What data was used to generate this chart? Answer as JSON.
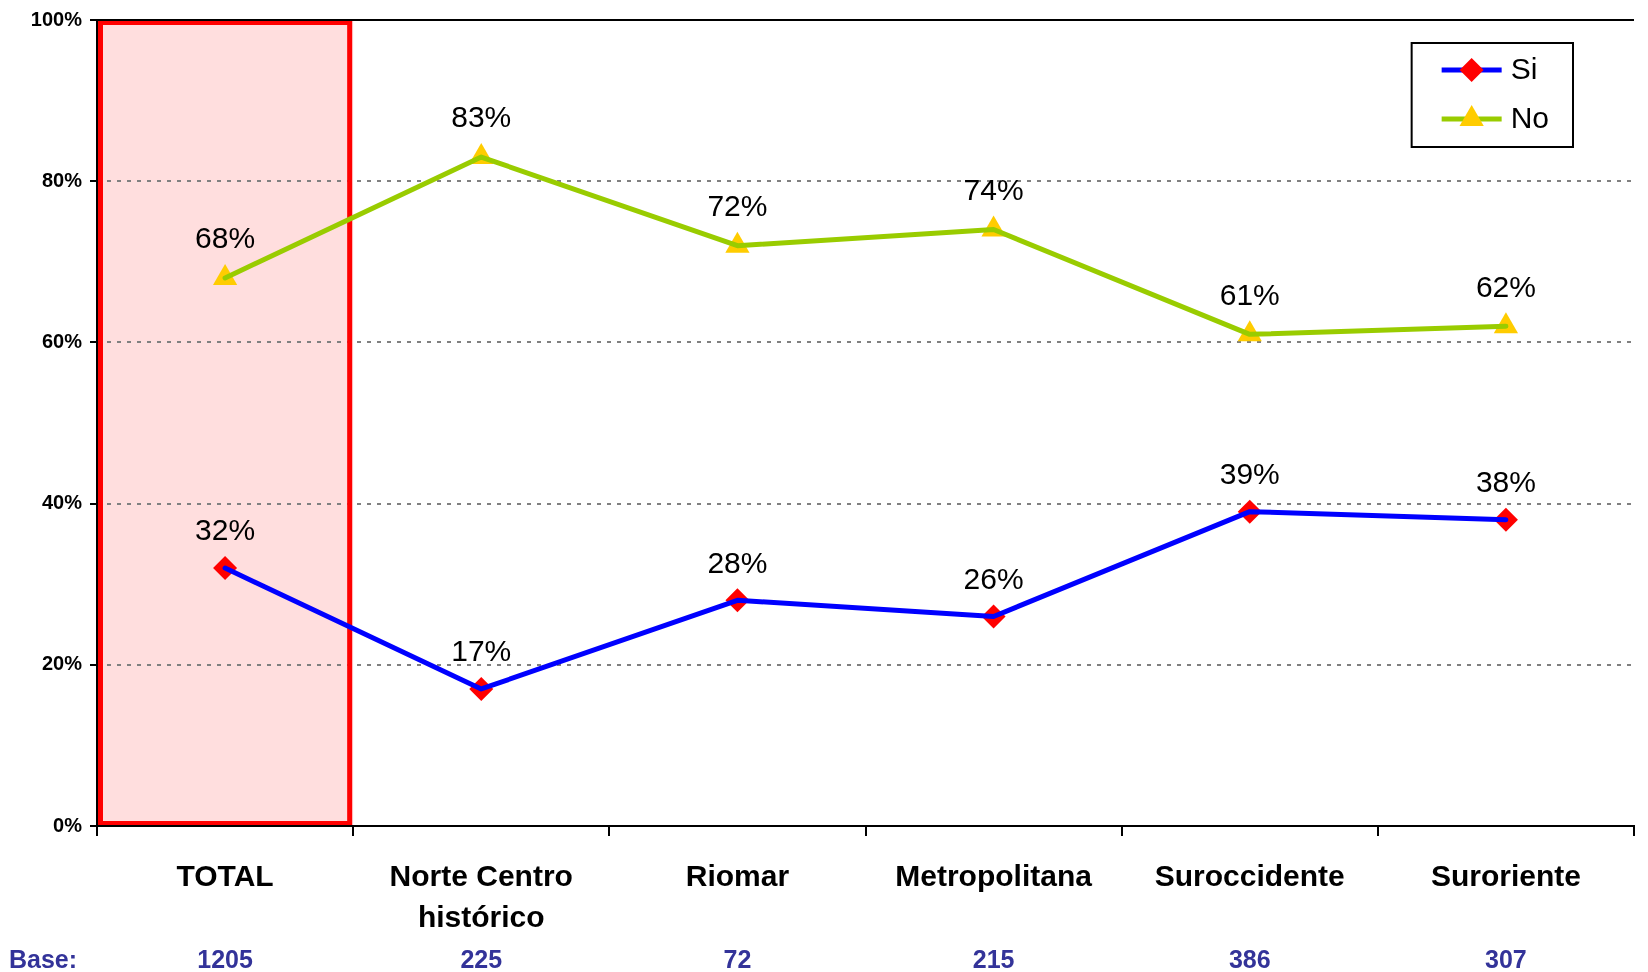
{
  "chart_data": {
    "type": "line",
    "categories": [
      "TOTAL",
      "Norte Centro histórico",
      "Riomar",
      "Metropolitana",
      "Suroccidente",
      "Suroriente"
    ],
    "series": [
      {
        "name": "Si",
        "color": "#0000ff",
        "colors": [
          "#ff0000",
          "#ff0000",
          "#ff0000",
          "#ff0000",
          "#ff0000",
          "#ff0000"
        ],
        "marker": "diamond",
        "values": [
          32,
          17,
          28,
          26,
          39,
          38
        ],
        "value_labels": [
          "32%",
          "17%",
          "28%",
          "26%",
          "39%",
          "38%"
        ]
      },
      {
        "name": "No",
        "color": "#99cc00",
        "colors": [
          "#ffcc00",
          "#ffcc00",
          "#ffcc00",
          "#ffcc00",
          "#ffcc00",
          "#ffcc00"
        ],
        "marker": "triangle",
        "values": [
          68,
          83,
          72,
          74,
          61,
          62
        ],
        "value_labels": [
          "68%",
          "83%",
          "72%",
          "74%",
          "61%",
          "62%"
        ]
      }
    ],
    "ylim": [
      0,
      100
    ],
    "yticks": [
      {
        "value": 0,
        "label": "0%"
      },
      {
        "value": 20,
        "label": "20%"
      },
      {
        "value": 40,
        "label": "40%"
      },
      {
        "value": 60,
        "label": "60%"
      },
      {
        "value": 80,
        "label": "80%"
      },
      {
        "value": 100,
        "label": "100%"
      }
    ],
    "grid": "y",
    "legend": "top right",
    "line_style": "solid",
    "bands": [
      {
        "axis": "x",
        "from": "TOTAL",
        "to": "TOTAL",
        "color": "#ff0000"
      }
    ],
    "annotations": [
      "Base:",
      "1205",
      "225",
      "72",
      "215",
      "386",
      "307"
    ]
  }
}
